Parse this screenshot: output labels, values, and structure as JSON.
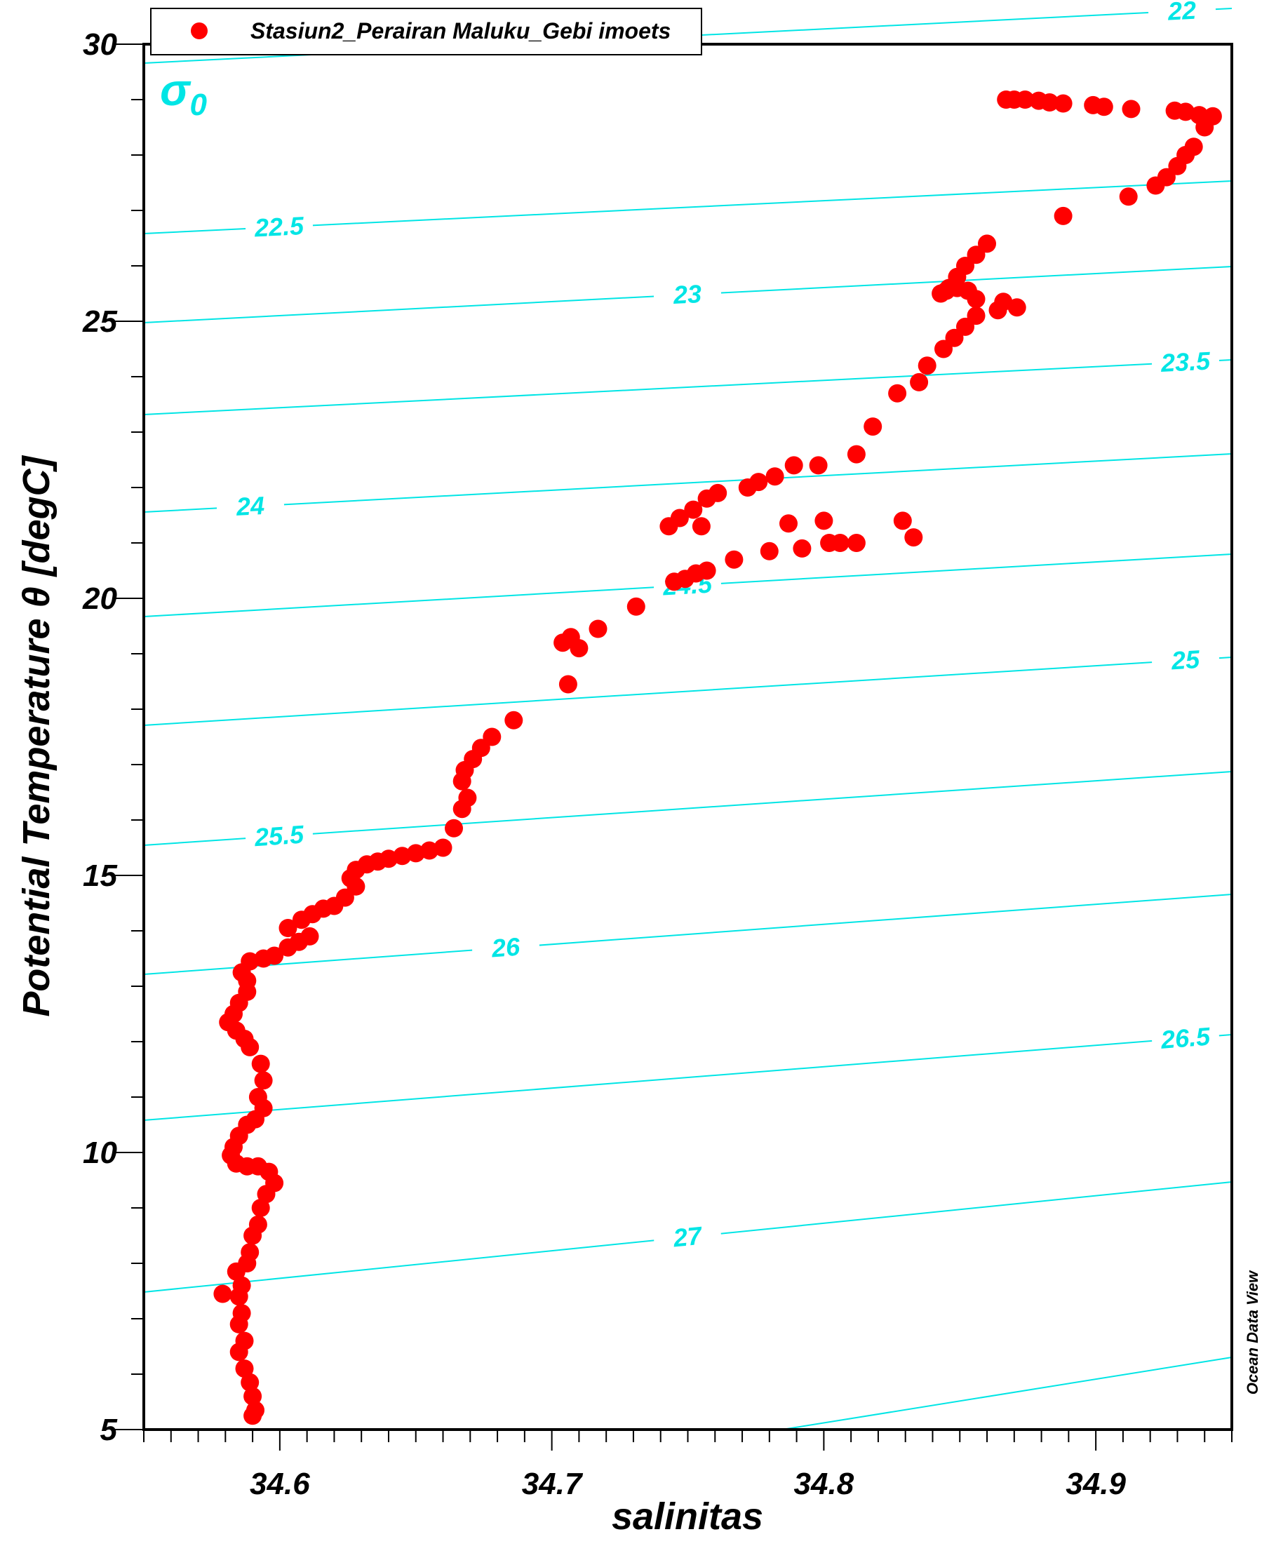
{
  "chart_data": {
    "type": "scatter",
    "xlabel": "salinitas",
    "ylabel": "Potential Temperature θ [degC]",
    "xlim": [
      34.55,
      34.95
    ],
    "ylim": [
      5,
      30
    ],
    "xticks": [
      34.6,
      34.7,
      34.8,
      34.9
    ],
    "xtick_labels": [
      "34.6",
      "34.7",
      "34.8",
      "34.9"
    ],
    "yticks": [
      5,
      10,
      15,
      20,
      25,
      30
    ],
    "ytick_labels": [
      "5",
      "10",
      "15",
      "20",
      "25",
      "30"
    ],
    "grid": false,
    "legend": {
      "placement": "top-left",
      "entries": [
        "Stasiun2_Perairan Maluku_Gebi imoets"
      ]
    },
    "series": [
      {
        "name": "Stasiun2_Perairan Maluku_Gebi imoets",
        "color": "#ff0000",
        "marker": "circle",
        "points": [
          [
            34.867,
            29.0
          ],
          [
            34.87,
            29.0
          ],
          [
            34.874,
            29.0
          ],
          [
            34.879,
            28.98
          ],
          [
            34.883,
            28.95
          ],
          [
            34.888,
            28.93
          ],
          [
            34.899,
            28.9
          ],
          [
            34.903,
            28.87
          ],
          [
            34.913,
            28.83
          ],
          [
            34.929,
            28.8
          ],
          [
            34.933,
            28.78
          ],
          [
            34.938,
            28.72
          ],
          [
            34.943,
            28.7
          ],
          [
            34.94,
            28.5
          ],
          [
            34.936,
            28.15
          ],
          [
            34.933,
            28.0
          ],
          [
            34.93,
            27.8
          ],
          [
            34.926,
            27.6
          ],
          [
            34.922,
            27.45
          ],
          [
            34.912,
            27.25
          ],
          [
            34.888,
            26.9
          ],
          [
            34.86,
            26.4
          ],
          [
            34.856,
            26.2
          ],
          [
            34.852,
            26.0
          ],
          [
            34.849,
            25.8
          ],
          [
            34.846,
            25.6
          ],
          [
            34.843,
            25.5
          ],
          [
            34.845,
            25.55
          ],
          [
            34.849,
            25.6
          ],
          [
            34.853,
            25.55
          ],
          [
            34.856,
            25.4
          ],
          [
            34.866,
            25.35
          ],
          [
            34.871,
            25.25
          ],
          [
            34.864,
            25.2
          ],
          [
            34.856,
            25.1
          ],
          [
            34.852,
            24.9
          ],
          [
            34.848,
            24.7
          ],
          [
            34.844,
            24.5
          ],
          [
            34.838,
            24.2
          ],
          [
            34.835,
            23.9
          ],
          [
            34.827,
            23.7
          ],
          [
            34.818,
            23.1
          ],
          [
            34.812,
            22.6
          ],
          [
            34.798,
            22.4
          ],
          [
            34.789,
            22.4
          ],
          [
            34.782,
            22.2
          ],
          [
            34.776,
            22.1
          ],
          [
            34.772,
            22.0
          ],
          [
            34.761,
            21.9
          ],
          [
            34.757,
            21.8
          ],
          [
            34.752,
            21.6
          ],
          [
            34.747,
            21.45
          ],
          [
            34.743,
            21.3
          ],
          [
            34.755,
            21.3
          ],
          [
            34.829,
            21.4
          ],
          [
            34.833,
            21.1
          ],
          [
            34.8,
            21.4
          ],
          [
            34.787,
            21.35
          ],
          [
            34.812,
            21.0
          ],
          [
            34.806,
            21.0
          ],
          [
            34.802,
            21.0
          ],
          [
            34.792,
            20.9
          ],
          [
            34.78,
            20.85
          ],
          [
            34.767,
            20.7
          ],
          [
            34.757,
            20.5
          ],
          [
            34.753,
            20.45
          ],
          [
            34.749,
            20.35
          ],
          [
            34.745,
            20.3
          ],
          [
            34.731,
            19.85
          ],
          [
            34.717,
            19.45
          ],
          [
            34.707,
            19.3
          ],
          [
            34.71,
            19.1
          ],
          [
            34.704,
            19.2
          ],
          [
            34.706,
            18.45
          ],
          [
            34.686,
            17.8
          ],
          [
            34.678,
            17.5
          ],
          [
            34.674,
            17.3
          ],
          [
            34.671,
            17.1
          ],
          [
            34.668,
            16.9
          ],
          [
            34.667,
            16.7
          ],
          [
            34.669,
            16.4
          ],
          [
            34.667,
            16.2
          ],
          [
            34.664,
            15.85
          ],
          [
            34.66,
            15.5
          ],
          [
            34.655,
            15.45
          ],
          [
            34.65,
            15.4
          ],
          [
            34.645,
            15.35
          ],
          [
            34.64,
            15.3
          ],
          [
            34.636,
            15.25
          ],
          [
            34.632,
            15.2
          ],
          [
            34.628,
            15.1
          ],
          [
            34.626,
            14.95
          ],
          [
            34.628,
            14.8
          ],
          [
            34.624,
            14.6
          ],
          [
            34.62,
            14.45
          ],
          [
            34.616,
            14.4
          ],
          [
            34.612,
            14.3
          ],
          [
            34.608,
            14.2
          ],
          [
            34.603,
            14.05
          ],
          [
            34.611,
            13.9
          ],
          [
            34.607,
            13.8
          ],
          [
            34.603,
            13.7
          ],
          [
            34.598,
            13.55
          ],
          [
            34.594,
            13.5
          ],
          [
            34.589,
            13.45
          ],
          [
            34.586,
            13.25
          ],
          [
            34.588,
            13.1
          ],
          [
            34.588,
            12.9
          ],
          [
            34.585,
            12.7
          ],
          [
            34.583,
            12.5
          ],
          [
            34.581,
            12.35
          ],
          [
            34.584,
            12.2
          ],
          [
            34.587,
            12.05
          ],
          [
            34.589,
            11.9
          ],
          [
            34.593,
            11.6
          ],
          [
            34.594,
            11.3
          ],
          [
            34.592,
            11.0
          ],
          [
            34.594,
            10.8
          ],
          [
            34.591,
            10.6
          ],
          [
            34.588,
            10.5
          ],
          [
            34.585,
            10.3
          ],
          [
            34.583,
            10.1
          ],
          [
            34.582,
            9.95
          ],
          [
            34.584,
            9.8
          ],
          [
            34.588,
            9.75
          ],
          [
            34.592,
            9.75
          ],
          [
            34.596,
            9.65
          ],
          [
            34.598,
            9.45
          ],
          [
            34.595,
            9.25
          ],
          [
            34.593,
            9.0
          ],
          [
            34.592,
            8.7
          ],
          [
            34.59,
            8.5
          ],
          [
            34.589,
            8.2
          ],
          [
            34.588,
            8.0
          ],
          [
            34.584,
            7.85
          ],
          [
            34.586,
            7.6
          ],
          [
            34.579,
            7.45
          ],
          [
            34.585,
            7.4
          ],
          [
            34.586,
            7.1
          ],
          [
            34.585,
            6.9
          ],
          [
            34.587,
            6.6
          ],
          [
            34.585,
            6.4
          ],
          [
            34.587,
            6.1
          ],
          [
            34.589,
            5.85
          ],
          [
            34.59,
            5.6
          ],
          [
            34.591,
            5.35
          ],
          [
            34.59,
            5.25
          ]
        ]
      }
    ],
    "overlay": {
      "name": "σ0",
      "color": "#00e5e5",
      "contour_levels": [
        22,
        22.5,
        23,
        23.5,
        24,
        24.5,
        25,
        25.5,
        26,
        26.5,
        27
      ],
      "labels": [
        "22",
        "22.5",
        "23",
        "23.5",
        "24",
        "24.5",
        "25",
        "25.5",
        "26",
        "26.5",
        "27"
      ]
    },
    "annotations": [
      "Ocean Data View"
    ]
  }
}
